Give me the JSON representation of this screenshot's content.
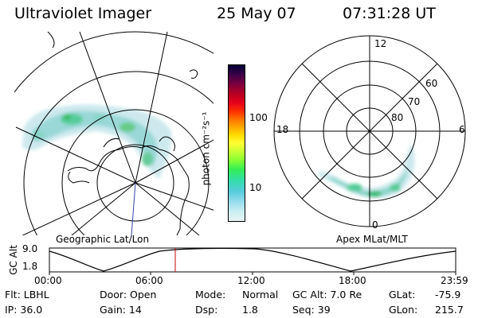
{
  "header": {
    "instrument": "Ultraviolet Imager",
    "date": "25 May 07",
    "time": "07:31:28 UT"
  },
  "geo_panel": {
    "caption": "Geographic Lat/Lon"
  },
  "mag_panel": {
    "caption": "Apex MLat/MLT",
    "mlt_labels": [
      "12",
      "18",
      "6",
      "0"
    ],
    "mlat_labels": [
      "60",
      "70",
      "80"
    ]
  },
  "colorbar": {
    "units": "photon cm⁻²s⁻¹",
    "tick_labels": [
      "100",
      "10"
    ],
    "colors": [
      "#000033",
      "#3a0048",
      "#7a0040",
      "#b30022",
      "#e6001a",
      "#ff3300",
      "#ff7700",
      "#ffaa00",
      "#ffdd00",
      "#ffff33",
      "#ccff33",
      "#88ff33",
      "#33ee55",
      "#33ddaa",
      "#55ccdd",
      "#99ddee",
      "#cceef2",
      "#e8f4f4"
    ]
  },
  "alt_plot": {
    "ylabel": "GC Alt",
    "y_ticks": [
      "9.0",
      "1.8"
    ],
    "x_ticks": [
      "00:00",
      "06:00",
      "12:00",
      "18:00",
      "23:59"
    ],
    "current_time_marker_color": "#cc0000"
  },
  "info": {
    "flt": "Flt: LBHL",
    "ip": "IP: 36.0",
    "door": "Door: Open",
    "gain": "Gain: 14",
    "mode_label": "Mode:",
    "mode_value": "Normal",
    "dsp_label": "Dsp:",
    "dsp_value": "1.8",
    "gcalt": "GC Alt: 7.0 Re",
    "seq": "Seq: 39",
    "glat_label": "GLat:",
    "glat_value": "-75.9",
    "glon_label": "GLon:",
    "glon_value": "215.7"
  },
  "colors": {
    "aurora_faint": "#cde9ee",
    "aurora_mid": "#8fd6cf",
    "aurora_bright": "#33cc88",
    "aurora_core": "#77dd33",
    "gray_grid": "#666666",
    "projection_line": "#3344aa"
  }
}
